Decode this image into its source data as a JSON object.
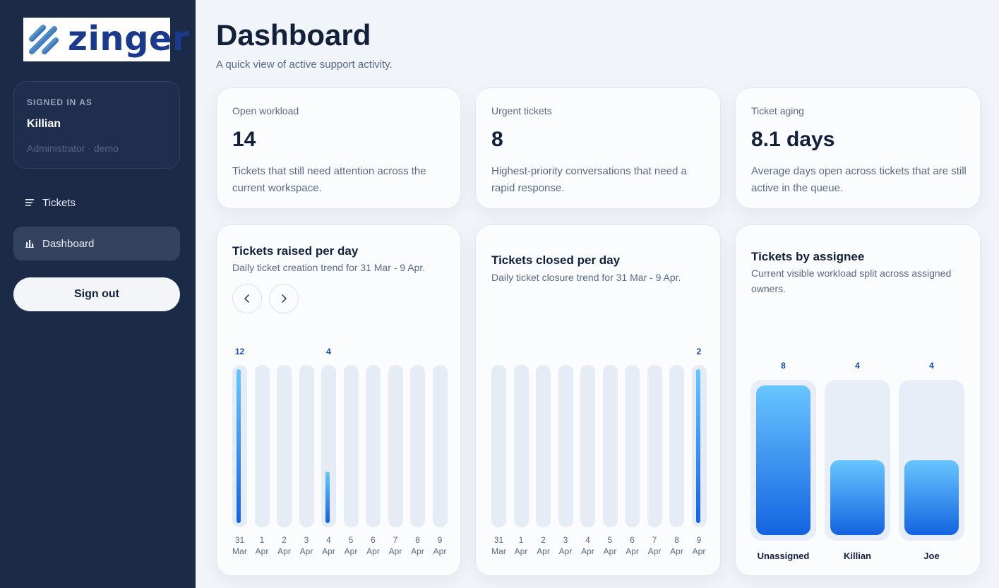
{
  "brand": {
    "name": "zinger"
  },
  "colors": {
    "sidebar": "#1b2a47",
    "accent": "#1463e0",
    "accent_light": "#68c6ff"
  },
  "user": {
    "signed_in_label": "SIGNED IN AS",
    "name": "Killian",
    "role": "Administrator · demo"
  },
  "nav": [
    {
      "label": "Tickets",
      "icon": "list-icon"
    },
    {
      "label": "Dashboard",
      "icon": "bar-chart-icon",
      "active": true
    }
  ],
  "signout_label": "Sign out",
  "header": {
    "title": "Dashboard",
    "subtitle": "A quick view of active support activity."
  },
  "stats": [
    {
      "label": "Open workload",
      "value": "14",
      "description": "Tickets that still need attention across the current workspace."
    },
    {
      "label": "Urgent tickets",
      "value": "8",
      "description": "Highest-priority conversations that need a rapid response."
    },
    {
      "label": "Ticket aging",
      "value": "8.1 days",
      "description": "Average days open across tickets that are still active in the queue."
    }
  ],
  "chart_data": [
    {
      "type": "bar",
      "title": "Tickets raised per day",
      "subtitle": "Daily ticket creation trend for 31 Mar - 9 Apr.",
      "categories": [
        [
          "31",
          "Mar"
        ],
        [
          "1",
          "Apr"
        ],
        [
          "2",
          "Apr"
        ],
        [
          "3",
          "Apr"
        ],
        [
          "4",
          "Apr"
        ],
        [
          "5",
          "Apr"
        ],
        [
          "6",
          "Apr"
        ],
        [
          "7",
          "Apr"
        ],
        [
          "8",
          "Apr"
        ],
        [
          "9",
          "Apr"
        ]
      ],
      "values": [
        12,
        0,
        0,
        0,
        4,
        0,
        0,
        0,
        0,
        0
      ],
      "ylim": [
        0,
        12
      ]
    },
    {
      "type": "bar",
      "title": "Tickets closed per day",
      "subtitle": "Daily ticket closure trend for 31 Mar - 9 Apr.",
      "categories": [
        [
          "31",
          "Mar"
        ],
        [
          "1",
          "Apr"
        ],
        [
          "2",
          "Apr"
        ],
        [
          "3",
          "Apr"
        ],
        [
          "4",
          "Apr"
        ],
        [
          "5",
          "Apr"
        ],
        [
          "6",
          "Apr"
        ],
        [
          "7",
          "Apr"
        ],
        [
          "8",
          "Apr"
        ],
        [
          "9",
          "Apr"
        ]
      ],
      "values": [
        0,
        0,
        0,
        0,
        0,
        0,
        0,
        0,
        0,
        2
      ],
      "ylim": [
        0,
        2
      ]
    },
    {
      "type": "bar",
      "title": "Tickets by assignee",
      "subtitle": "Current visible workload split across assigned owners.",
      "categories": [
        "Unassigned",
        "Killian",
        "Joe"
      ],
      "values": [
        8,
        4,
        4
      ],
      "ylim": [
        0,
        8
      ]
    }
  ]
}
